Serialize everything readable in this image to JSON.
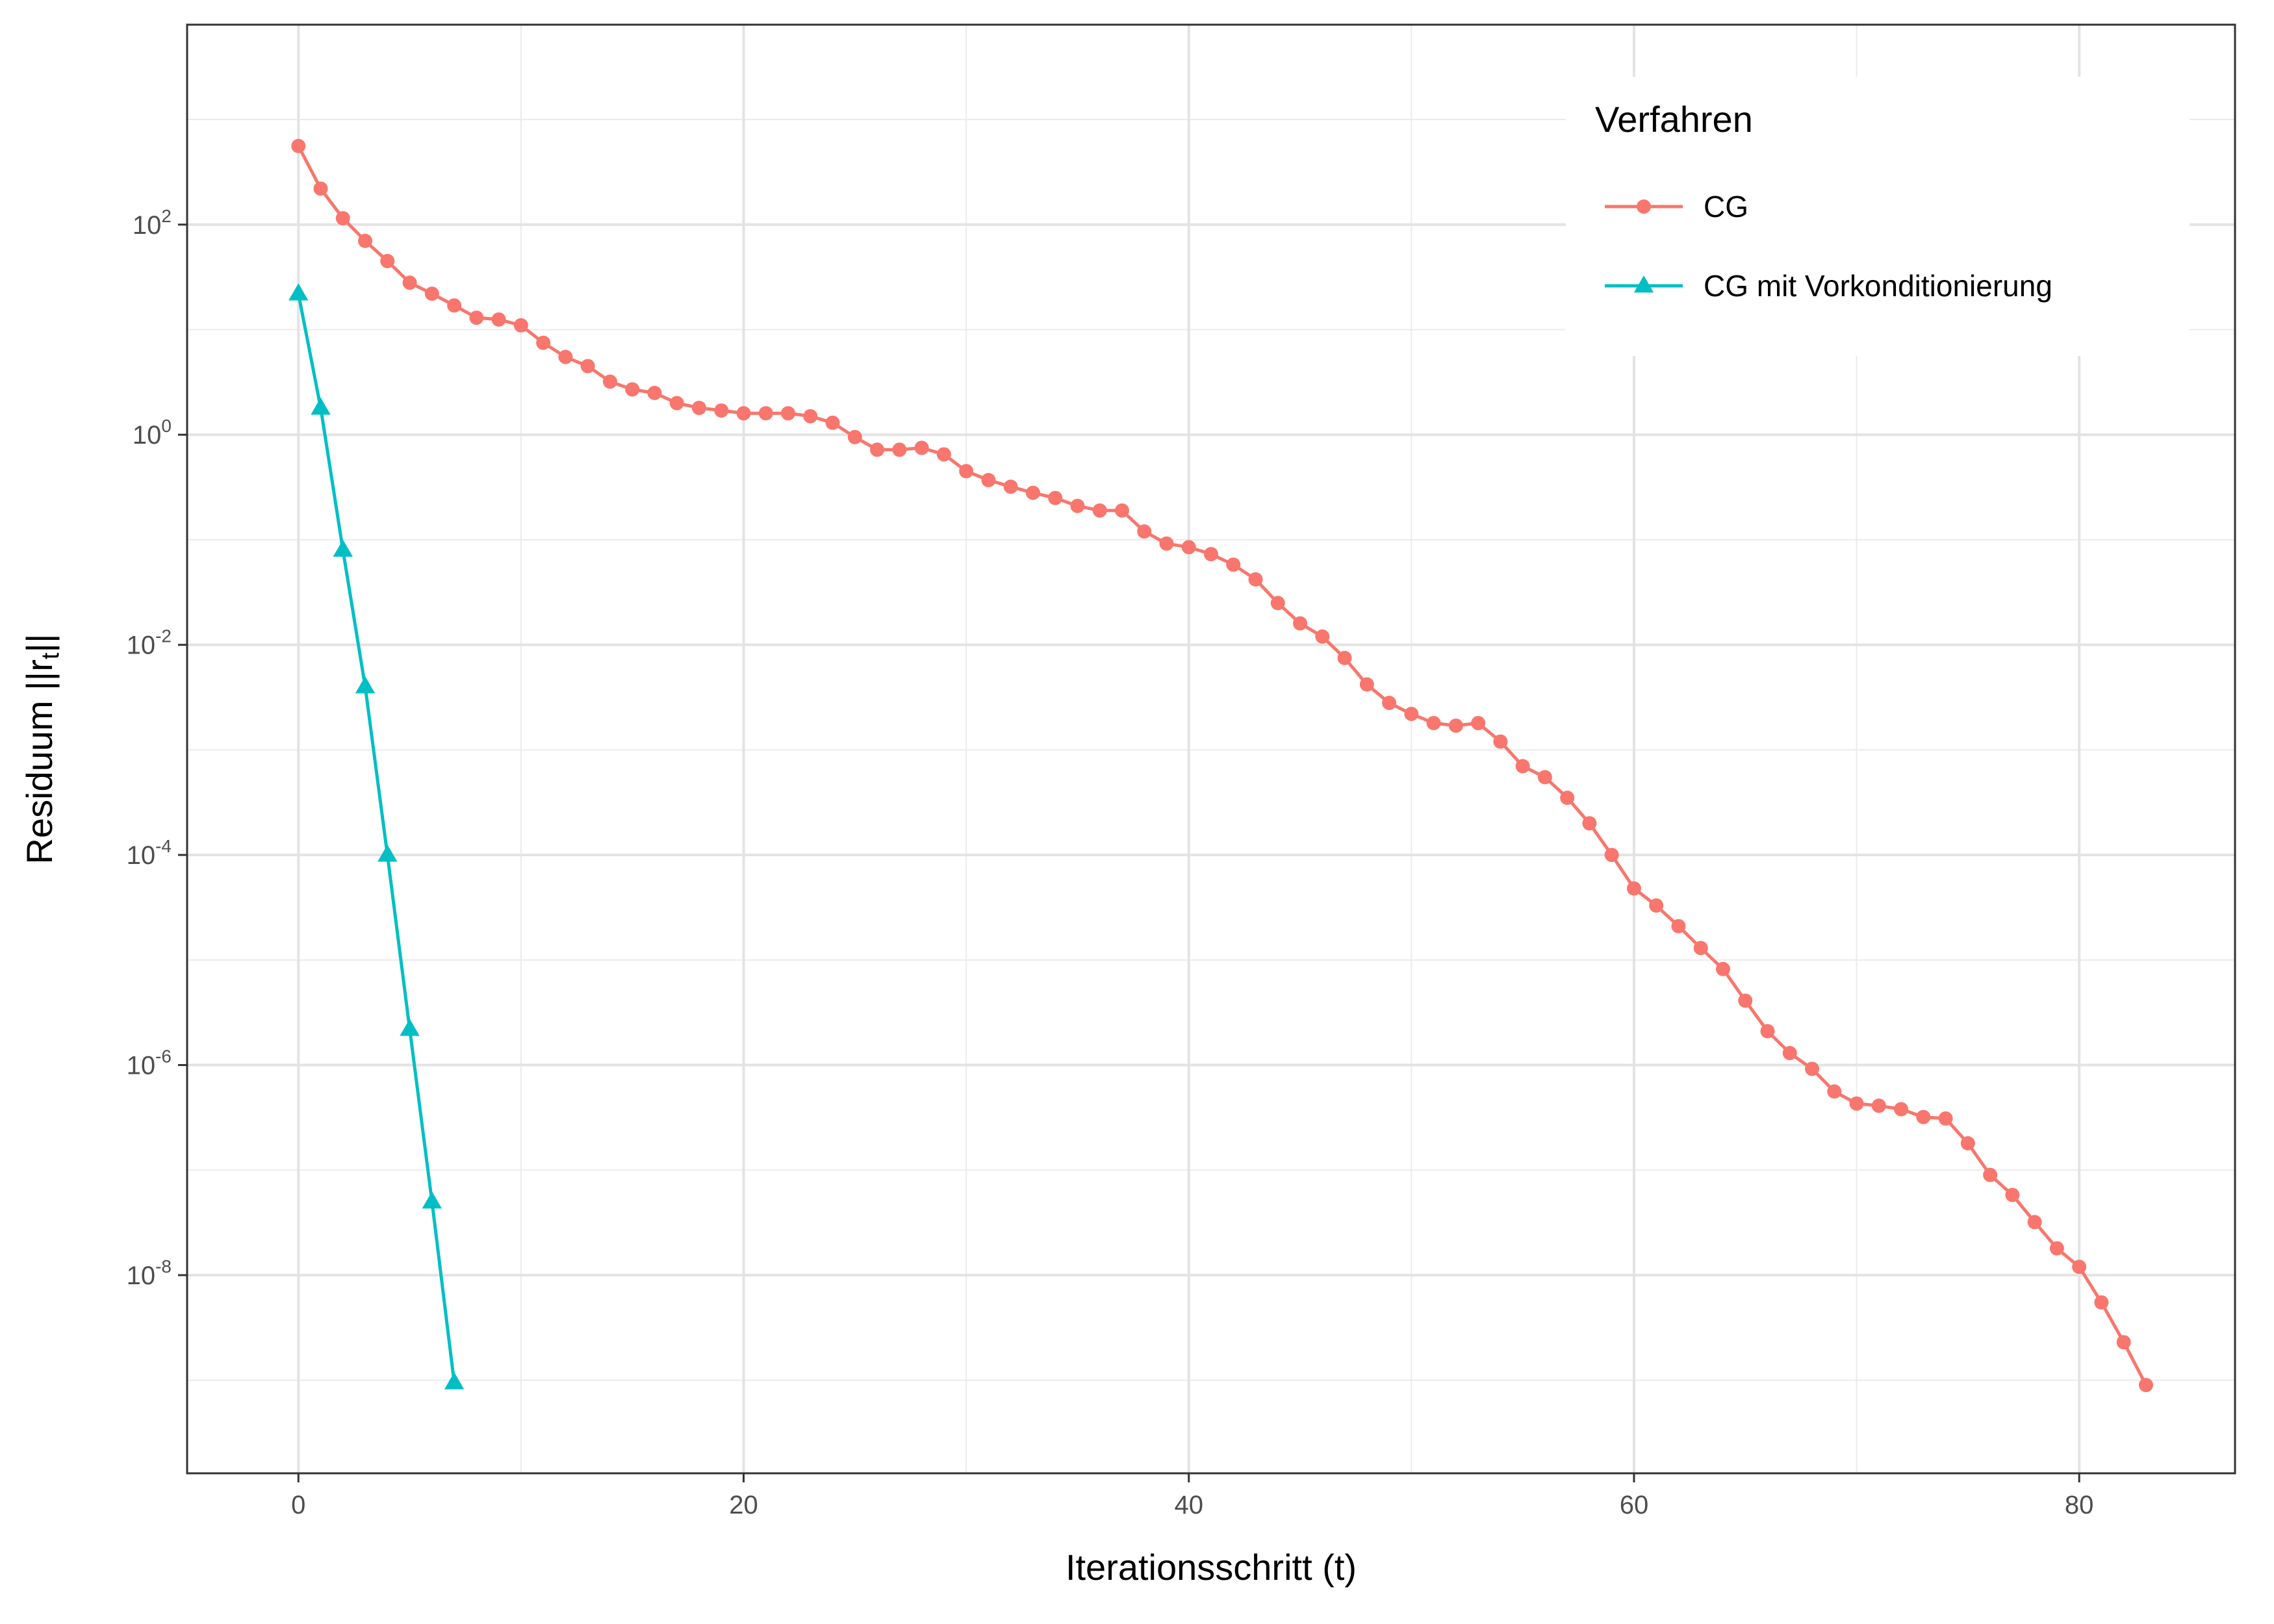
{
  "chart_data": {
    "type": "line",
    "xlabel": "Iterationsschritt (t)",
    "ylabel_prefix": "Residuum ||r",
    "ylabel_subscript": "t",
    "ylabel_suffix": "||",
    "y_scale": "log10",
    "xlim": [
      -5,
      87
    ],
    "ylim": [
      1.3e-10,
      8000
    ],
    "x_ticks": [
      0,
      20,
      40,
      60,
      80
    ],
    "y_tick_exponents": [
      2,
      0,
      -2,
      -4,
      -6,
      -8
    ],
    "grid": true,
    "legend": {
      "title": "Verfahren",
      "position": "top-right"
    },
    "series": [
      {
        "name": "CG",
        "color": "#F8766D",
        "marker": "circle",
        "x": [
          0,
          1,
          2,
          3,
          4,
          5,
          6,
          7,
          8,
          9,
          10,
          11,
          12,
          13,
          14,
          15,
          16,
          17,
          18,
          19,
          20,
          21,
          22,
          23,
          24,
          25,
          26,
          27,
          28,
          29,
          30,
          31,
          32,
          33,
          34,
          35,
          36,
          37,
          38,
          39,
          40,
          41,
          42,
          43,
          44,
          45,
          46,
          47,
          48,
          49,
          50,
          51,
          52,
          53,
          54,
          55,
          56,
          57,
          58,
          59,
          60,
          61,
          62,
          63,
          64,
          65,
          66,
          67,
          68,
          69,
          70,
          71,
          72,
          73,
          74,
          75,
          76,
          77,
          78,
          79,
          80,
          81,
          82,
          83
        ],
        "y": [
          560,
          220,
          115,
          70,
          45,
          28,
          22,
          17,
          13,
          12.5,
          11,
          7.5,
          5.5,
          4.5,
          3.2,
          2.7,
          2.5,
          2,
          1.8,
          1.7,
          1.6,
          1.6,
          1.6,
          1.5,
          1.3,
          0.95,
          0.72,
          0.72,
          0.75,
          0.65,
          0.45,
          0.37,
          0.32,
          0.28,
          0.25,
          0.21,
          0.19,
          0.19,
          0.12,
          0.092,
          0.085,
          0.073,
          0.058,
          0.042,
          0.025,
          0.016,
          0.012,
          0.0075,
          0.0042,
          0.0028,
          0.0022,
          0.0018,
          0.0017,
          0.0018,
          0.0012,
          0.0007,
          0.00055,
          0.00035,
          0.0002,
          0.0001,
          4.8e-05,
          3.3e-05,
          2.1e-05,
          1.3e-05,
          8.2e-06,
          4.1e-06,
          2.1e-06,
          1.3e-06,
          9.2e-07,
          5.6e-07,
          4.3e-07,
          4.1e-07,
          3.8e-07,
          3.2e-07,
          3.1e-07,
          1.8e-07,
          9e-08,
          5.8e-08,
          3.2e-08,
          1.8e-08,
          1.2e-08,
          5.5e-09,
          2.3e-09,
          9e-10
        ]
      },
      {
        "name": "CG mit Vorkonditionierung",
        "color": "#00BFC4",
        "marker": "triangle",
        "x": [
          0,
          1,
          2,
          3,
          4,
          5,
          6,
          7
        ],
        "y": [
          22,
          1.8,
          0.08,
          0.004,
          0.0001,
          2.2e-06,
          5e-08,
          9.5e-10
        ]
      }
    ]
  }
}
